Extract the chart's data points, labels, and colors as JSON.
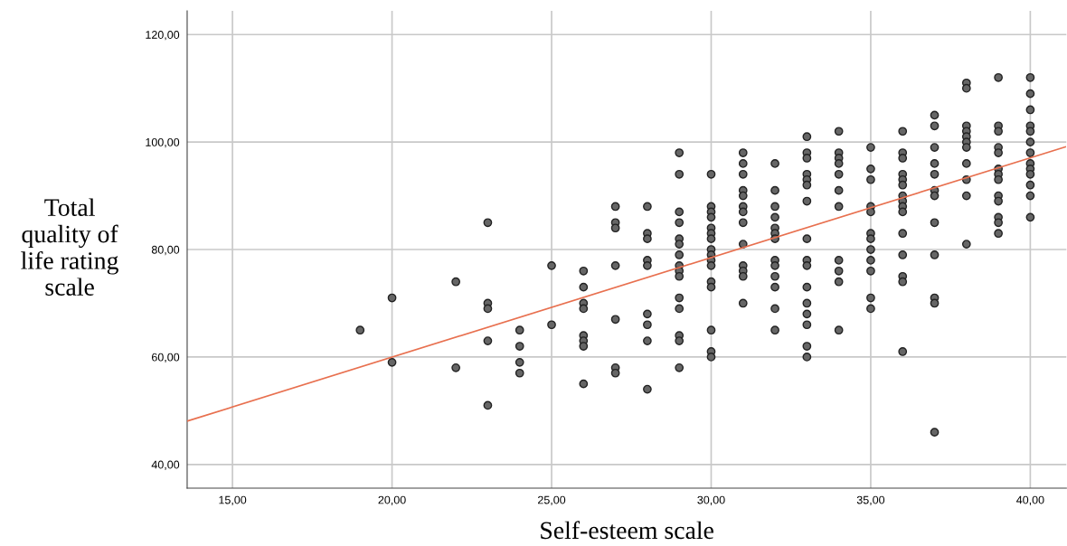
{
  "chart_data": {
    "type": "scatter",
    "xlabel": "Self-esteem scale",
    "ylabel": "Total\nquality of\nlife rating\nscale",
    "xlim": [
      13.58,
      41.13
    ],
    "ylim": [
      35.6,
      124.4
    ],
    "xticks": [
      {
        "value": 15,
        "label": "15,00"
      },
      {
        "value": 20,
        "label": "20,00"
      },
      {
        "value": 25,
        "label": "25,00"
      },
      {
        "value": 30,
        "label": "30,00"
      },
      {
        "value": 35,
        "label": "35,00"
      },
      {
        "value": 40,
        "label": "40,00"
      }
    ],
    "yticks": [
      {
        "value": 40,
        "label": "40,00"
      },
      {
        "value": 60,
        "label": "60,00"
      },
      {
        "value": 80,
        "label": "80,00"
      },
      {
        "value": 100,
        "label": "100,00"
      },
      {
        "value": 120,
        "label": "120,00"
      }
    ],
    "grid": true,
    "marker": "circle",
    "legend": false,
    "series": [
      {
        "color": "#666666",
        "x": [
          19,
          20,
          20,
          22,
          22,
          23,
          23,
          23,
          23,
          23,
          24,
          24,
          24,
          24,
          25,
          25,
          26,
          26,
          26,
          26,
          26,
          26,
          26,
          26,
          27,
          27,
          27,
          27,
          27,
          27,
          27,
          28,
          28,
          28,
          28,
          28,
          28,
          28,
          28,
          28,
          29,
          29,
          29,
          29,
          29,
          29,
          29,
          29,
          29,
          29,
          29,
          29,
          29,
          29,
          29,
          30,
          30,
          30,
          30,
          30,
          30,
          30,
          30,
          30,
          30,
          30,
          30,
          30,
          30,
          30,
          30,
          31,
          31,
          31,
          31,
          31,
          31,
          31,
          31,
          31,
          31,
          31,
          31,
          31,
          32,
          32,
          32,
          32,
          32,
          32,
          32,
          32,
          32,
          32,
          32,
          32,
          32,
          33,
          33,
          33,
          33,
          33,
          33,
          33,
          33,
          33,
          33,
          33,
          33,
          33,
          33,
          33,
          33,
          34,
          34,
          34,
          34,
          34,
          34,
          34,
          34,
          34,
          34,
          34,
          35,
          35,
          35,
          35,
          35,
          35,
          35,
          35,
          35,
          35,
          35,
          35,
          36,
          36,
          36,
          36,
          36,
          36,
          36,
          36,
          36,
          36,
          36,
          36,
          36,
          36,
          36,
          37,
          37,
          37,
          37,
          37,
          37,
          37,
          37,
          37,
          37,
          37,
          37,
          38,
          38,
          38,
          38,
          38,
          38,
          38,
          38,
          38,
          38,
          38,
          39,
          39,
          39,
          39,
          39,
          39,
          39,
          39,
          39,
          39,
          39,
          39,
          39,
          40,
          40,
          40,
          40,
          40,
          40,
          40,
          40,
          40,
          40,
          40,
          40,
          40
        ],
        "values": [
          65,
          71,
          59,
          74,
          58,
          85,
          70,
          69,
          63,
          51,
          65,
          62,
          59,
          57,
          77,
          66,
          76,
          73,
          70,
          69,
          64,
          63,
          62,
          55,
          88,
          85,
          84,
          77,
          67,
          58,
          57,
          88,
          83,
          82,
          78,
          77,
          68,
          66,
          63,
          54,
          98,
          94,
          87,
          85,
          82,
          81,
          79,
          77,
          76,
          75,
          71,
          69,
          64,
          63,
          58,
          94,
          88,
          87,
          86,
          84,
          83,
          82,
          80,
          79,
          78,
          77,
          74,
          73,
          65,
          61,
          60,
          98,
          96,
          94,
          91,
          90,
          88,
          87,
          85,
          81,
          77,
          76,
          75,
          70,
          96,
          91,
          88,
          86,
          84,
          83,
          82,
          78,
          77,
          75,
          73,
          69,
          65,
          101,
          98,
          97,
          94,
          93,
          92,
          89,
          82,
          78,
          77,
          73,
          70,
          68,
          66,
          62,
          60,
          102,
          98,
          97,
          96,
          94,
          91,
          88,
          78,
          76,
          74,
          65,
          99,
          95,
          93,
          88,
          87,
          83,
          82,
          80,
          78,
          76,
          71,
          69,
          102,
          98,
          97,
          94,
          93,
          92,
          90,
          89,
          88,
          87,
          83,
          79,
          75,
          74,
          61,
          105,
          103,
          99,
          96,
          94,
          91,
          90,
          85,
          79,
          71,
          70,
          46,
          111,
          110,
          103,
          102,
          101,
          100,
          99,
          96,
          93,
          90,
          81,
          112,
          103,
          102,
          99,
          98,
          95,
          94,
          93,
          90,
          89,
          86,
          85,
          83,
          112,
          109,
          106,
          103,
          102,
          100,
          98,
          96,
          95,
          94,
          92,
          90,
          86
        ]
      },
      {
        "type": "line",
        "color": "#e8704f",
        "marker": "none",
        "x": [
          13.6,
          41.1
        ],
        "values": [
          48.1,
          99.1
        ]
      }
    ]
  }
}
